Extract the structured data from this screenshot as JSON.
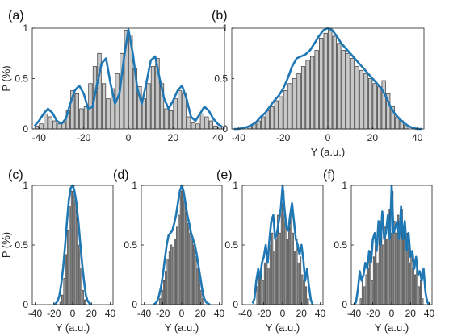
{
  "chart_data": [
    {
      "type": "bar",
      "panel_label": "(a)",
      "xlabel": "",
      "ylabel": "P (%)",
      "xlim": [
        -43,
        43
      ],
      "ylim": [
        0,
        1
      ],
      "xticks": [
        "-40",
        "-20",
        "0",
        "20",
        "40"
      ],
      "xtick_values": [
        -40,
        -20,
        0,
        20,
        40
      ],
      "yticks": [
        "0",
        "0.5",
        "1"
      ],
      "ytick_values": [
        0,
        0.5,
        1
      ],
      "bin_width": 2,
      "x": [
        -41,
        -39,
        -37,
        -35,
        -33,
        -31,
        -29,
        -27,
        -25,
        -23,
        -21,
        -19,
        -17,
        -15,
        -13,
        -11,
        -9,
        -7,
        -5,
        -3,
        -1,
        1,
        3,
        5,
        7,
        9,
        11,
        13,
        15,
        17,
        19,
        21,
        23,
        25,
        27,
        29,
        31,
        33,
        35,
        37,
        39,
        41
      ],
      "values": [
        0.03,
        0.05,
        0.15,
        0.12,
        0.08,
        0.05,
        0.06,
        0.18,
        0.38,
        0.35,
        0.2,
        0.22,
        0.45,
        0.62,
        0.75,
        0.45,
        0.3,
        0.4,
        0.55,
        0.75,
        0.98,
        0.92,
        0.6,
        0.42,
        0.3,
        0.45,
        0.62,
        0.7,
        0.45,
        0.2,
        0.18,
        0.3,
        0.38,
        0.35,
        0.12,
        0.06,
        0.05,
        0.15,
        0.12,
        0.08,
        0.03,
        0.02
      ],
      "curve": {
        "x": [
          -42,
          -40,
          -38,
          -36,
          -34,
          -32,
          -30,
          -28,
          -26,
          -24,
          -22,
          -20,
          -18,
          -16,
          -14,
          -12,
          -10,
          -8,
          -6,
          -4,
          -2,
          0,
          2,
          4,
          6,
          8,
          10,
          12,
          14,
          16,
          18,
          20,
          22,
          24,
          26,
          28,
          30,
          32,
          34,
          36,
          38,
          40,
          42
        ],
        "y": [
          0.03,
          0.08,
          0.15,
          0.2,
          0.16,
          0.08,
          0.05,
          0.1,
          0.25,
          0.38,
          0.43,
          0.35,
          0.2,
          0.22,
          0.45,
          0.65,
          0.7,
          0.45,
          0.25,
          0.35,
          0.7,
          0.99,
          0.75,
          0.4,
          0.25,
          0.45,
          0.68,
          0.72,
          0.5,
          0.3,
          0.2,
          0.28,
          0.38,
          0.43,
          0.3,
          0.12,
          0.08,
          0.15,
          0.22,
          0.18,
          0.1,
          0.05,
          0.02
        ]
      },
      "colors": {
        "bar": "#c8c8c8",
        "curve": "#1f77b4"
      }
    },
    {
      "type": "bar",
      "panel_label": "(b)",
      "xlabel": "Y (a.u.)",
      "ylabel": "",
      "xlim": [
        -43,
        43
      ],
      "ylim": [
        0,
        1
      ],
      "xticks": [
        "-40",
        "-20",
        "0",
        "20",
        "40"
      ],
      "xtick_values": [
        -40,
        -20,
        0,
        20,
        40
      ],
      "yticks": [
        "0",
        "0.5",
        "1"
      ],
      "ytick_values": [
        0,
        0.5,
        1
      ],
      "bin_width": 2,
      "x": [
        -35,
        -33,
        -31,
        -29,
        -27,
        -25,
        -23,
        -21,
        -19,
        -17,
        -15,
        -13,
        -11,
        -9,
        -7,
        -5,
        -3,
        -1,
        1,
        3,
        5,
        7,
        9,
        11,
        13,
        15,
        17,
        19,
        21,
        23,
        25,
        27,
        29,
        31,
        33,
        35
      ],
      "values": [
        0.03,
        0.05,
        0.08,
        0.12,
        0.18,
        0.22,
        0.28,
        0.32,
        0.38,
        0.45,
        0.5,
        0.55,
        0.62,
        0.68,
        0.72,
        0.78,
        0.9,
        0.95,
        1.0,
        0.92,
        0.85,
        0.78,
        0.75,
        0.7,
        0.62,
        0.58,
        0.55,
        0.5,
        0.45,
        0.42,
        0.48,
        0.35,
        0.22,
        0.12,
        0.08,
        0.04
      ],
      "curve": {
        "x": [
          -42,
          -40,
          -38,
          -36,
          -34,
          -32,
          -30,
          -28,
          -26,
          -24,
          -22,
          -20,
          -18,
          -16,
          -14,
          -12,
          -10,
          -8,
          -6,
          -4,
          -2,
          0,
          2,
          4,
          6,
          8,
          10,
          12,
          14,
          16,
          18,
          20,
          22,
          24,
          26,
          28,
          30,
          32,
          34,
          36,
          38,
          40,
          42
        ],
        "y": [
          0.0,
          0.0,
          0.01,
          0.02,
          0.04,
          0.07,
          0.12,
          0.16,
          0.22,
          0.28,
          0.33,
          0.4,
          0.5,
          0.62,
          0.7,
          0.72,
          0.74,
          0.78,
          0.85,
          0.92,
          0.98,
          1.0,
          0.98,
          0.92,
          0.85,
          0.8,
          0.75,
          0.7,
          0.65,
          0.6,
          0.55,
          0.5,
          0.45,
          0.4,
          0.32,
          0.22,
          0.15,
          0.1,
          0.06,
          0.03,
          0.01,
          0.0,
          0.0
        ]
      },
      "colors": {
        "bar": "#c8c8c8",
        "curve": "#1f77b4"
      }
    },
    {
      "type": "bar",
      "panel_label": "(c)",
      "xlabel": "Y (a.u.)",
      "ylabel": "P (%)",
      "xlim": [
        -43,
        43
      ],
      "ylim": [
        0,
        1
      ],
      "xticks": [
        "-40",
        "-20",
        "0",
        "20",
        "40"
      ],
      "xtick_values": [
        -40,
        -20,
        0,
        20,
        40
      ],
      "yticks": [
        "0",
        "0.5",
        "1"
      ],
      "ytick_values": [
        0,
        0.5,
        1
      ],
      "bin_width": 2,
      "x": [
        -13,
        -11,
        -9,
        -7,
        -5,
        -3,
        -1,
        1,
        3,
        5,
        7,
        9,
        11,
        13
      ],
      "values": [
        0.02,
        0.08,
        0.22,
        0.42,
        0.62,
        0.82,
        0.95,
        1.0,
        0.88,
        0.75,
        0.5,
        0.3,
        0.12,
        0.04
      ],
      "curve": {
        "x": [
          -20,
          -18,
          -16,
          -14,
          -12,
          -10,
          -8,
          -6,
          -4,
          -2,
          0,
          2,
          4,
          6,
          8,
          10,
          12,
          14,
          16,
          18,
          20
        ],
        "y": [
          0.0,
          0.01,
          0.03,
          0.08,
          0.18,
          0.32,
          0.5,
          0.7,
          0.88,
          0.98,
          1.0,
          0.95,
          0.85,
          0.7,
          0.52,
          0.35,
          0.2,
          0.08,
          0.03,
          0.01,
          0.0
        ]
      },
      "colors": {
        "bar": "#c8c8c8",
        "curve": "#1f77b4"
      }
    },
    {
      "type": "bar",
      "panel_label": "(d)",
      "xlabel": "Y (a.u.)",
      "ylabel": "",
      "xlim": [
        -43,
        43
      ],
      "ylim": [
        0,
        1
      ],
      "xticks": [
        "-40",
        "-20",
        "0",
        "20",
        "40"
      ],
      "xtick_values": [
        -40,
        -20,
        0,
        20,
        40
      ],
      "yticks": [
        "0",
        "0.5",
        "1"
      ],
      "ytick_values": [
        0,
        0.5,
        1
      ],
      "bin_width": 2,
      "x": [
        -23,
        -21,
        -19,
        -17,
        -15,
        -13,
        -11,
        -9,
        -7,
        -5,
        -3,
        -1,
        1,
        3,
        5,
        7,
        9,
        11,
        13,
        15,
        17,
        19,
        21,
        23
      ],
      "values": [
        0.05,
        0.12,
        0.2,
        0.28,
        0.38,
        0.45,
        0.5,
        0.48,
        0.55,
        0.65,
        0.75,
        0.95,
        1.0,
        0.9,
        0.78,
        0.68,
        0.6,
        0.55,
        0.5,
        0.4,
        0.3,
        0.2,
        0.12,
        0.05
      ],
      "curve": {
        "x": [
          -30,
          -28,
          -26,
          -24,
          -22,
          -20,
          -18,
          -16,
          -14,
          -12,
          -10,
          -8,
          -6,
          -4,
          -2,
          0,
          2,
          4,
          6,
          8,
          10,
          12,
          14,
          16,
          18,
          20,
          22,
          24,
          26,
          28,
          30
        ],
        "y": [
          0.0,
          0.01,
          0.03,
          0.08,
          0.15,
          0.25,
          0.38,
          0.5,
          0.58,
          0.6,
          0.62,
          0.68,
          0.75,
          0.85,
          0.95,
          1.0,
          0.95,
          0.85,
          0.75,
          0.68,
          0.6,
          0.55,
          0.5,
          0.42,
          0.32,
          0.22,
          0.12,
          0.05,
          0.02,
          0.01,
          0.0
        ]
      },
      "colors": {
        "bar": "#c8c8c8",
        "curve": "#1f77b4"
      }
    },
    {
      "type": "bar",
      "panel_label": "(e)",
      "xlabel": "Y (a.u.)",
      "ylabel": "",
      "xlim": [
        -43,
        43
      ],
      "ylim": [
        0,
        1
      ],
      "xticks": [
        "-40",
        "-20",
        "0",
        "20",
        "40"
      ],
      "xtick_values": [
        -40,
        -20,
        0,
        20,
        40
      ],
      "yticks": [
        "0",
        "0.5",
        "1"
      ],
      "ytick_values": [
        0,
        0.5,
        1
      ],
      "bin_width": 2,
      "x": [
        -27,
        -25,
        -23,
        -21,
        -19,
        -17,
        -15,
        -13,
        -11,
        -9,
        -7,
        -5,
        -3,
        -1,
        1,
        3,
        5,
        7,
        9,
        11,
        13,
        15,
        17,
        19,
        21,
        23,
        25,
        27
      ],
      "values": [
        0.15,
        0.25,
        0.3,
        0.2,
        0.35,
        0.45,
        0.3,
        0.5,
        0.6,
        0.45,
        0.55,
        0.75,
        0.6,
        0.85,
        0.95,
        0.7,
        0.55,
        0.65,
        0.8,
        0.6,
        0.45,
        0.55,
        0.35,
        0.4,
        0.25,
        0.2,
        0.15,
        0.05
      ],
      "curve": {
        "x": [
          -32,
          -30,
          -28,
          -26,
          -24,
          -22,
          -20,
          -18,
          -16,
          -14,
          -12,
          -10,
          -8,
          -6,
          -4,
          -2,
          0,
          2,
          4,
          6,
          8,
          10,
          12,
          14,
          16,
          18,
          20,
          22,
          24,
          26,
          28,
          30,
          32
        ],
        "y": [
          0.01,
          0.05,
          0.2,
          0.3,
          0.22,
          0.35,
          0.4,
          0.5,
          0.35,
          0.55,
          0.7,
          0.75,
          0.55,
          0.6,
          0.7,
          0.8,
          1.0,
          0.8,
          0.65,
          0.62,
          0.75,
          0.85,
          0.7,
          0.55,
          0.5,
          0.42,
          0.5,
          0.38,
          0.2,
          0.3,
          0.15,
          0.04,
          0.0
        ]
      },
      "colors": {
        "bar": "#c8c8c8",
        "curve": "#1f77b4"
      }
    },
    {
      "type": "bar",
      "panel_label": "(f)",
      "xlabel": "Y (a.u.)",
      "ylabel": "",
      "xlim": [
        -43,
        43
      ],
      "ylim": [
        0,
        1
      ],
      "xticks": [
        "-40",
        "-20",
        "0",
        "20",
        "40"
      ],
      "xtick_values": [
        -40,
        -20,
        0,
        20,
        40
      ],
      "yticks": [
        "0",
        "0.5",
        "1"
      ],
      "ytick_values": [
        0,
        0.5,
        1
      ],
      "bin_width": 2,
      "x": [
        -33,
        -31,
        -29,
        -27,
        -25,
        -23,
        -21,
        -19,
        -17,
        -15,
        -13,
        -11,
        -9,
        -7,
        -5,
        -3,
        -1,
        1,
        3,
        5,
        7,
        9,
        11,
        13,
        15,
        17,
        19,
        21,
        23,
        25,
        27,
        29,
        31,
        33
      ],
      "values": [
        0.05,
        0.2,
        0.15,
        0.25,
        0.3,
        0.45,
        0.2,
        0.4,
        0.5,
        0.35,
        0.6,
        0.7,
        0.5,
        0.65,
        0.55,
        0.8,
        0.6,
        0.95,
        0.7,
        0.6,
        0.75,
        0.55,
        0.8,
        0.65,
        0.5,
        0.6,
        0.35,
        0.45,
        0.3,
        0.25,
        0.35,
        0.15,
        0.2,
        0.05
      ],
      "curve": {
        "x": [
          -40,
          -38,
          -36,
          -34,
          -32,
          -30,
          -28,
          -26,
          -24,
          -22,
          -20,
          -18,
          -16,
          -14,
          -12,
          -10,
          -8,
          -6,
          -4,
          -2,
          0,
          2,
          4,
          6,
          8,
          10,
          12,
          14,
          16,
          18,
          20,
          22,
          24,
          26,
          28,
          30,
          32,
          34,
          36,
          38,
          40
        ],
        "y": [
          0.0,
          0.02,
          0.12,
          0.28,
          0.2,
          0.25,
          0.35,
          0.3,
          0.45,
          0.35,
          0.55,
          0.6,
          0.45,
          0.7,
          0.5,
          0.78,
          0.55,
          0.6,
          0.75,
          0.55,
          1.0,
          0.6,
          0.65,
          0.7,
          0.55,
          0.82,
          0.55,
          0.7,
          0.45,
          0.6,
          0.4,
          0.45,
          0.3,
          0.4,
          0.25,
          0.28,
          0.2,
          0.3,
          0.1,
          0.02,
          0.0
        ]
      },
      "colors": {
        "bar": "#c8c8c8",
        "curve": "#1f77b4"
      }
    }
  ]
}
